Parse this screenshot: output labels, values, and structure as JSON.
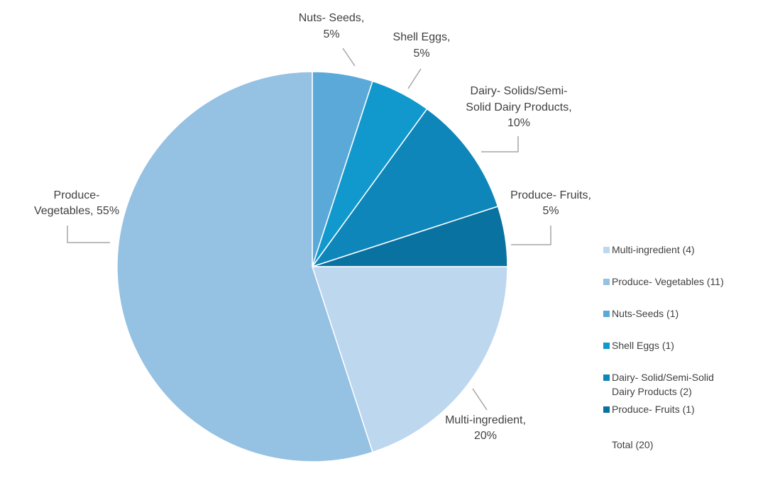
{
  "chart_data": {
    "type": "pie",
    "title": "",
    "start_angle_deg": 0,
    "direction": "clockwise",
    "slices": [
      {
        "name": "Nuts-Seeds",
        "legend": "Nuts-Seeds (1)",
        "count": 1,
        "percent": 5,
        "label": [
          "Nuts- Seeds,",
          "5%"
        ],
        "color": "#5BA9D9"
      },
      {
        "name": "Shell Eggs",
        "legend": "Shell Eggs (1)",
        "count": 1,
        "percent": 5,
        "label": [
          "Shell Eggs,",
          "5%"
        ],
        "color": "#1199CE"
      },
      {
        "name": "Dairy- Solid/Semi-Solid Dairy Products",
        "legend": "Dairy- Solid/Semi-Solid|Dairy Products (2)",
        "count": 2,
        "percent": 10,
        "label": [
          "Dairy- Solids/Semi-",
          "Solid Dairy Products,",
          "10%"
        ],
        "color": "#0E86BA"
      },
      {
        "name": "Produce- Fruits",
        "legend": "Produce- Fruits (1)",
        "count": 1,
        "percent": 5,
        "label": [
          "Produce- Fruits,",
          "5%"
        ],
        "color": "#0A72A0"
      },
      {
        "name": "Multi-ingredient",
        "legend": "Multi-ingredient (4)",
        "count": 4,
        "percent": 20,
        "label": [
          "Multi-ingredient,",
          "20%"
        ],
        "color": "#BDD7EE"
      },
      {
        "name": "Produce- Vegetables",
        "legend": "Produce- Vegetables (11)",
        "count": 11,
        "percent": 55,
        "label": [
          "Produce-",
          "Vegetables, 55%"
        ],
        "color": "#95C1E3"
      }
    ],
    "legend_order": [
      "Multi-ingredient",
      "Produce- Vegetables",
      "Nuts-Seeds",
      "Shell Eggs",
      "Dairy- Solid/Semi-Solid Dairy Products",
      "Produce- Fruits"
    ],
    "legend_placement": "right",
    "legend_total": "Total (20)",
    "leader_line_color": "#A6A6A6"
  }
}
